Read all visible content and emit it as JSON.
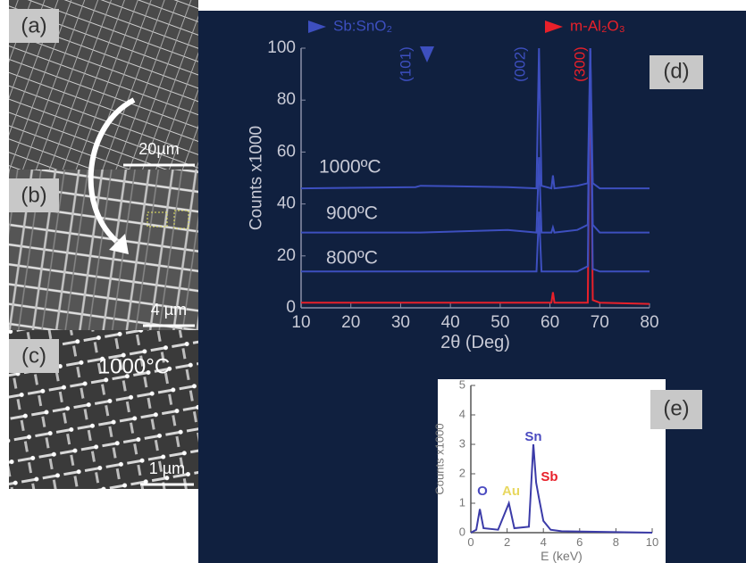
{
  "panels": [
    {
      "label": "(a)",
      "scale_bar": "20µm"
    },
    {
      "label": "(b)",
      "scale_bar": "4 µm"
    },
    {
      "label": "(c)",
      "scale_bar": "1 µm",
      "annotation": "1000°C"
    }
  ],
  "chart_data": [
    {
      "type": "line",
      "panel_label": "(d)",
      "xlabel": "2θ (Deg)",
      "ylabel": "Counts x1000",
      "legend": [
        {
          "name": "Sb:SnO₂",
          "color": "#3d4fbf"
        },
        {
          "name": "m-Al₂O₃",
          "color": "#e8202a"
        }
      ],
      "annotations": [
        {
          "text": "(101)",
          "color": "#3d4fbf"
        },
        {
          "text": "(002)",
          "color": "#3d4fbf"
        },
        {
          "text": "(300)",
          "color": "#e8202a"
        }
      ],
      "x": [
        10,
        33,
        34,
        51.5,
        57.3,
        57.8,
        58.3,
        60.3,
        60.6,
        60.9,
        65.5,
        67.6,
        68.1,
        68.6,
        70,
        80
      ],
      "series": [
        {
          "color": "#e8202a",
          "values": [
            2,
            2,
            2,
            2,
            2,
            2,
            2,
            2,
            6,
            2,
            2,
            2,
            99,
            3,
            2,
            1.5
          ]
        },
        {
          "name": "800ºC",
          "color": "#3d4fbf",
          "values": [
            14,
            14,
            14,
            14,
            14,
            37,
            14,
            14,
            14,
            14,
            14,
            16,
            99,
            15,
            14,
            14
          ]
        },
        {
          "name": "900ºC",
          "color": "#3d4fbf",
          "values": [
            29,
            29,
            29,
            30,
            29,
            58,
            29,
            29,
            31,
            29,
            30,
            32,
            100,
            32,
            29,
            29
          ]
        },
        {
          "name": "1000ºC",
          "color": "#3d4fbf",
          "values": [
            46,
            46.5,
            47,
            46.5,
            46,
            100,
            47,
            46,
            51,
            46,
            47,
            48,
            100,
            48,
            46,
            46
          ]
        }
      ],
      "xlim": [
        10,
        80
      ],
      "xticks": [
        10,
        20,
        30,
        40,
        50,
        60,
        70,
        80
      ],
      "ylim": [
        0,
        100
      ],
      "yticks": [
        0,
        20,
        40,
        60,
        80,
        100
      ]
    },
    {
      "type": "line",
      "panel_label": "(e)",
      "xlabel": "E (keV)",
      "ylabel": "Counts x1000",
      "annotations": [
        {
          "text": "O",
          "color": "#4a4ac0"
        },
        {
          "text": "Au",
          "color": "#e8d860"
        },
        {
          "text": "Sn",
          "color": "#4a4ac0"
        },
        {
          "text": "Sb",
          "color": "#e8202a"
        }
      ],
      "x": [
        0,
        0.3,
        0.5,
        0.7,
        1.5,
        2.1,
        2.4,
        3.2,
        3.45,
        3.6,
        3.75,
        4.0,
        4.4,
        5,
        10
      ],
      "series": [
        {
          "color": "#3b3ba8",
          "values": [
            0,
            0.1,
            0.8,
            0.15,
            0.1,
            1.0,
            0.15,
            0.2,
            3.0,
            1.7,
            1.2,
            0.4,
            0.1,
            0.05,
            0
          ]
        }
      ],
      "xlim": [
        0,
        10
      ],
      "xticks": [
        0,
        2,
        4,
        6,
        8,
        10
      ],
      "ylim": [
        0,
        5
      ],
      "yticks": [
        0,
        1,
        2,
        3,
        4,
        5
      ]
    }
  ]
}
